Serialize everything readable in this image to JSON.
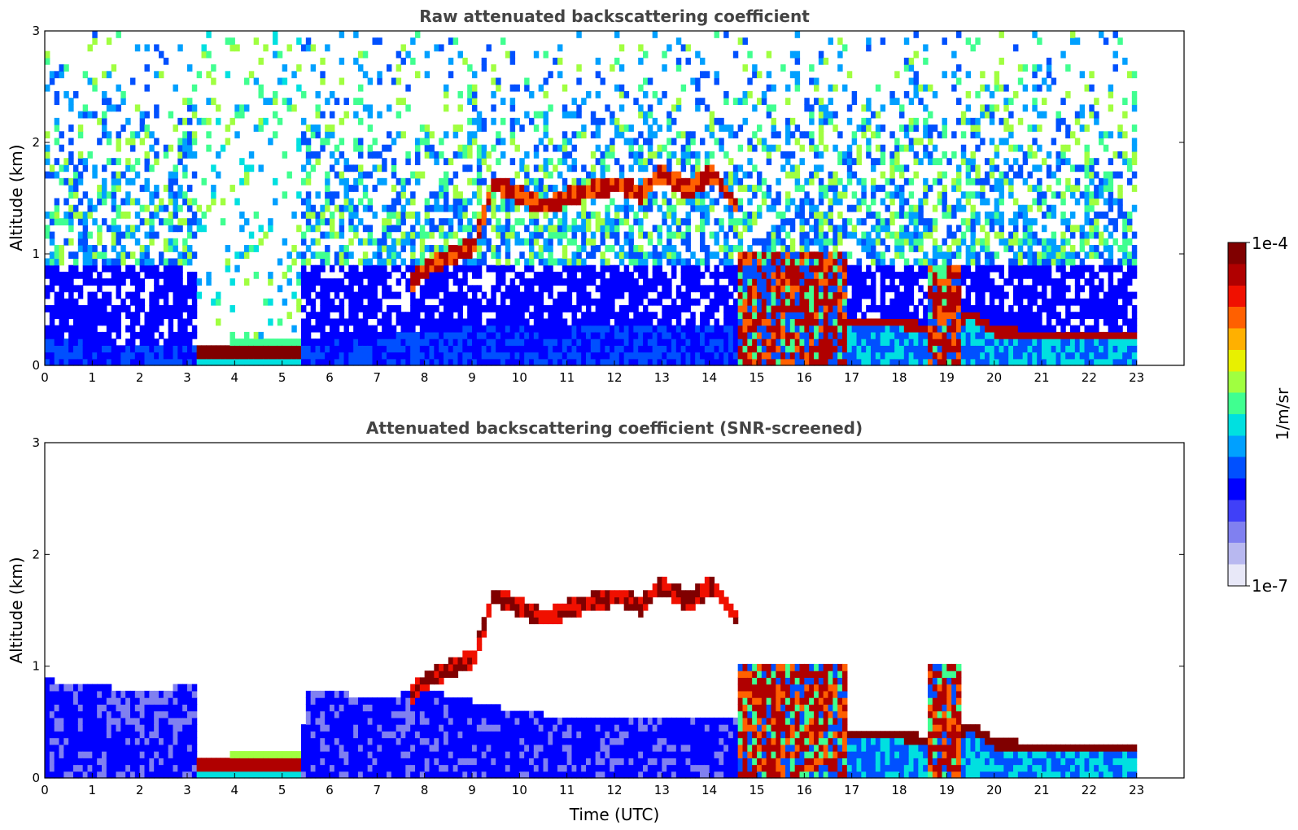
{
  "chart_data": [
    {
      "type": "heatmap",
      "title": "Raw attenuated backscattering coefficient",
      "xlabel": "",
      "ylabel": "Altitude (km)",
      "xlim": [
        0,
        24
      ],
      "ylim": [
        0,
        3
      ],
      "x_ticks": [
        "0",
        "1",
        "2",
        "3",
        "4",
        "5",
        "6",
        "7",
        "8",
        "9",
        "10",
        "11",
        "12",
        "13",
        "14",
        "15",
        "16",
        "17",
        "18",
        "19",
        "20",
        "21",
        "22",
        "23"
      ],
      "y_ticks": [
        "0",
        "1",
        "2",
        "3"
      ],
      "data_end_time": 23,
      "boundary_layer_top_km": [
        [
          0,
          0.2
        ],
        [
          3.2,
          0.12
        ],
        [
          5.3,
          0.15
        ],
        [
          6,
          0.2
        ],
        [
          8,
          0.3
        ],
        [
          10,
          0.35
        ],
        [
          12,
          0.35
        ],
        [
          14.5,
          0.35
        ],
        [
          16,
          0.38
        ],
        [
          17,
          0.42
        ],
        [
          17.8,
          0.4
        ],
        [
          18.5,
          0.35
        ],
        [
          19.5,
          0.45
        ],
        [
          20,
          0.32
        ],
        [
          21,
          0.28
        ],
        [
          22,
          0.3
        ],
        [
          23,
          0.3
        ]
      ],
      "cloud_layer_km": [
        [
          7.6,
          0.7
        ],
        [
          8,
          0.85
        ],
        [
          9,
          1.05
        ],
        [
          9.4,
          1.6
        ],
        [
          10.5,
          1.4
        ],
        [
          11,
          1.5
        ],
        [
          11.5,
          1.55
        ],
        [
          12,
          1.6
        ],
        [
          12.5,
          1.5
        ],
        [
          12.9,
          1.7
        ],
        [
          13.5,
          1.55
        ],
        [
          14,
          1.7
        ],
        [
          14.5,
          1.4
        ]
      ],
      "precipitation_periods_utc": [
        [
          14.55,
          16.8
        ],
        [
          18.5,
          19.3
        ]
      ],
      "fog_period_utc": [
        3.15,
        5.3
      ]
    },
    {
      "type": "heatmap",
      "title": "Attenuated backscattering coefficient (SNR-screened)",
      "xlabel": "Time (UTC)",
      "ylabel": "Altitude (km)",
      "xlim": [
        0,
        24
      ],
      "ylim": [
        0,
        3
      ],
      "x_ticks": [
        "0",
        "1",
        "2",
        "3",
        "4",
        "5",
        "6",
        "7",
        "8",
        "9",
        "10",
        "11",
        "12",
        "13",
        "14",
        "15",
        "16",
        "17",
        "18",
        "19",
        "20",
        "21",
        "22",
        "23"
      ],
      "y_ticks": [
        "0",
        "1",
        "2",
        "3"
      ],
      "data_end_time": 23,
      "screened_noise_top_km": [
        [
          0,
          0.85
        ],
        [
          2,
          0.75
        ],
        [
          3.15,
          0.8
        ],
        [
          3.2,
          0.18
        ],
        [
          5.3,
          0.2
        ],
        [
          5.5,
          0.75
        ],
        [
          7,
          0.7
        ],
        [
          8,
          0.75
        ],
        [
          9,
          0.65
        ],
        [
          10,
          0.55
        ],
        [
          12,
          0.5
        ],
        [
          14.5,
          0.5
        ]
      ]
    }
  ],
  "colorbar": {
    "label": "1/m/sr",
    "max_label": "1e-4",
    "min_label": "1e-7",
    "colors": [
      "#e8e8f8",
      "#b8b8f0",
      "#8080f0",
      "#4040f8",
      "#0000ff",
      "#0050ff",
      "#00a0ff",
      "#00e0e0",
      "#40ff90",
      "#a0ff40",
      "#e8f000",
      "#ffb000",
      "#ff6000",
      "#f01000",
      "#b00000",
      "#800000"
    ]
  }
}
